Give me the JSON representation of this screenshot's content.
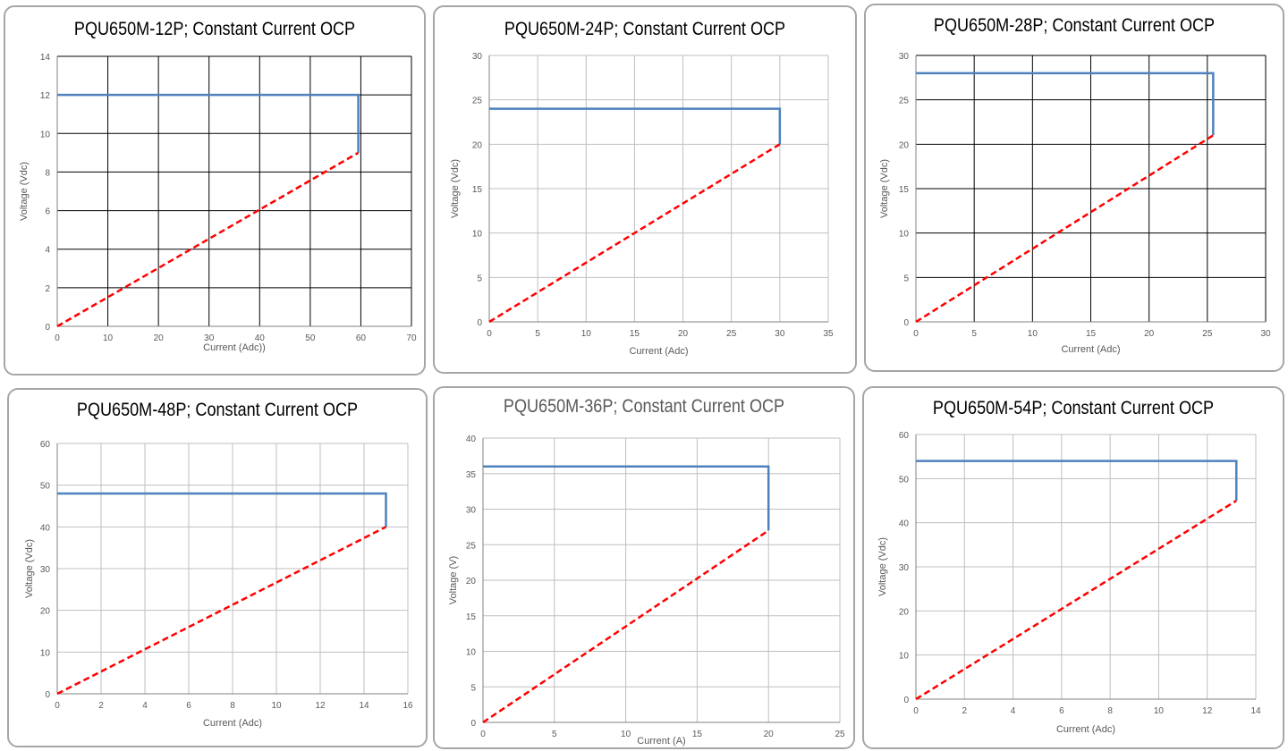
{
  "chart_data": [
    {
      "type": "line",
      "title": "PQU650M-12P; Constant Current OCP",
      "xlabel": "Current (Adc))",
      "ylabel": "Voltage (Vdc)",
      "xlim": [
        0,
        70
      ],
      "ylim": [
        0,
        14
      ],
      "xticks": [
        0,
        10,
        20,
        30,
        40,
        50,
        60,
        70
      ],
      "yticks": [
        0,
        2,
        4,
        6,
        8,
        10,
        12,
        14
      ],
      "grid": true,
      "grid_color": "#000000",
      "series": [
        {
          "style": "solid",
          "color": "#4f81bd",
          "points": [
            [
              0,
              12
            ],
            [
              59.5,
              12
            ],
            [
              59.5,
              9
            ]
          ]
        },
        {
          "style": "dashed",
          "color": "#ff0000",
          "points": [
            [
              0,
              0
            ],
            [
              59.5,
              9
            ]
          ]
        }
      ]
    },
    {
      "type": "line",
      "title": "PQU650M-24P; Constant Current OCP",
      "xlabel": "Current (Adc)",
      "ylabel": "Voltage (Vdc)",
      "xlim": [
        0,
        35
      ],
      "ylim": [
        0,
        30
      ],
      "xticks": [
        0,
        5,
        10,
        15,
        20,
        25,
        30,
        35
      ],
      "yticks": [
        0,
        5,
        10,
        15,
        20,
        25,
        30
      ],
      "grid": true,
      "grid_color": "#bfbfbf",
      "series": [
        {
          "style": "solid",
          "color": "#4f81bd",
          "points": [
            [
              0,
              24
            ],
            [
              30,
              24
            ],
            [
              30,
              20
            ]
          ]
        },
        {
          "style": "dashed",
          "color": "#ff0000",
          "points": [
            [
              0,
              0
            ],
            [
              30,
              20
            ]
          ]
        }
      ]
    },
    {
      "type": "line",
      "title": "PQU650M-28P; Constant Current OCP",
      "xlabel": "Current (Adc)",
      "ylabel": "Voltage (Vdc)",
      "xlim": [
        0,
        30
      ],
      "ylim": [
        0,
        30
      ],
      "xticks": [
        0,
        5,
        10,
        15,
        20,
        25,
        30
      ],
      "yticks": [
        0,
        5,
        10,
        15,
        20,
        25,
        30
      ],
      "grid": true,
      "grid_color": "#000000",
      "series": [
        {
          "style": "solid",
          "color": "#4f81bd",
          "points": [
            [
              0,
              28
            ],
            [
              25.5,
              28
            ],
            [
              25.5,
              21
            ]
          ]
        },
        {
          "style": "dashed",
          "color": "#ff0000",
          "points": [
            [
              0,
              0
            ],
            [
              25.5,
              21
            ]
          ]
        }
      ]
    },
    {
      "type": "line",
      "title": "PQU650M-48P; Constant Current OCP",
      "xlabel": "Current (Adc)",
      "ylabel": "Voltage (Vdc)",
      "xlim": [
        0,
        16
      ],
      "ylim": [
        0,
        60
      ],
      "xticks": [
        0,
        2,
        4,
        6,
        8,
        10,
        12,
        14,
        16
      ],
      "yticks": [
        0,
        10,
        20,
        30,
        40,
        50,
        60
      ],
      "grid": true,
      "grid_color": "#bfbfbf",
      "series": [
        {
          "style": "solid",
          "color": "#4f81bd",
          "points": [
            [
              0,
              48
            ],
            [
              15,
              48
            ],
            [
              15,
              40
            ]
          ]
        },
        {
          "style": "dashed",
          "color": "#ff0000",
          "points": [
            [
              0,
              0
            ],
            [
              15,
              40
            ]
          ]
        }
      ]
    },
    {
      "type": "line",
      "title": "PQU650M-36P; Constant Current OCP",
      "xlabel": "Current (A)",
      "ylabel": "Voltage (V)",
      "xlim": [
        0,
        25
      ],
      "ylim": [
        0,
        40
      ],
      "xticks": [
        0,
        5,
        10,
        15,
        20,
        25
      ],
      "yticks": [
        0,
        5,
        10,
        15,
        20,
        25,
        30,
        35,
        40
      ],
      "grid": true,
      "grid_color": "#bfbfbf",
      "series": [
        {
          "style": "solid",
          "color": "#4f81bd",
          "points": [
            [
              0,
              36
            ],
            [
              20,
              36
            ],
            [
              20,
              27
            ]
          ]
        },
        {
          "style": "dashed",
          "color": "#ff0000",
          "points": [
            [
              0,
              0
            ],
            [
              20,
              27
            ]
          ]
        }
      ]
    },
    {
      "type": "line",
      "title": "PQU650M-54P; Constant Current OCP",
      "xlabel": "Current (Adc)",
      "ylabel": "Voltage (Vdc)",
      "xlim": [
        0,
        14
      ],
      "ylim": [
        0,
        60
      ],
      "xticks": [
        0,
        2,
        4,
        6,
        8,
        10,
        12,
        14
      ],
      "yticks": [
        0,
        10,
        20,
        30,
        40,
        50,
        60
      ],
      "grid": true,
      "grid_color": "#bfbfbf",
      "series": [
        {
          "style": "solid",
          "color": "#4f81bd",
          "points": [
            [
              0,
              54
            ],
            [
              13.2,
              54
            ],
            [
              13.2,
              45
            ]
          ]
        },
        {
          "style": "dashed",
          "color": "#ff0000",
          "points": [
            [
              0,
              0
            ],
            [
              13.2,
              45
            ]
          ]
        }
      ]
    }
  ]
}
